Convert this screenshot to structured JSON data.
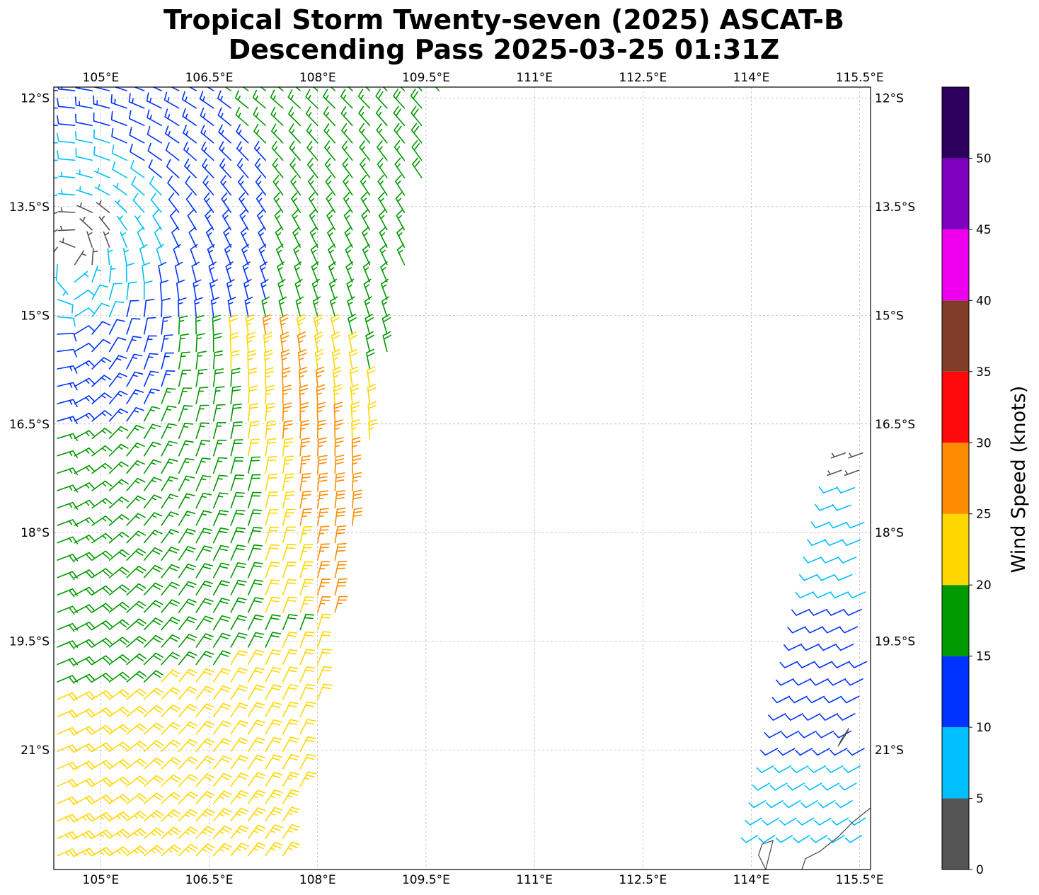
{
  "title": {
    "line1": "Tropical Storm Twenty-seven (2025) ASCAT-B",
    "line2": "Descending Pass 2025-03-25 01:31Z"
  },
  "map": {
    "lon_min": 104.35,
    "lon_max": 115.65,
    "lat_min": -22.65,
    "lat_max": -11.85,
    "lon_ticks": [
      105,
      106.5,
      108,
      109.5,
      111,
      112.5,
      114,
      115.5
    ],
    "lon_labels": [
      "105°E",
      "106.5°E",
      "108°E",
      "109.5°E",
      "111°E",
      "112.5°E",
      "114°E",
      "115.5°E"
    ],
    "lat_ticks": [
      -12,
      -13.5,
      -15,
      -16.5,
      -18,
      -19.5,
      -21
    ],
    "lat_labels": [
      "12°S",
      "13.5°S",
      "15°S",
      "16.5°S",
      "18°S",
      "19.5°S",
      "21°S"
    ],
    "gridlines": true,
    "coastline_color": "#444444"
  },
  "colorbar": {
    "label": "Wind Speed (knots)",
    "bounds": [
      0,
      5,
      10,
      15,
      20,
      25,
      30,
      35,
      40,
      45,
      50,
      55
    ],
    "tick_values": [
      0,
      5,
      10,
      15,
      20,
      25,
      30,
      35,
      40,
      45,
      50
    ],
    "tick_labels": [
      "0",
      "5",
      "10",
      "15",
      "20",
      "25",
      "30",
      "35",
      "40",
      "45",
      "50"
    ],
    "colors": [
      "#555555",
      "#00BFFF",
      "#0033FF",
      "#009900",
      "#FFD700",
      "#FF8C00",
      "#FF0A0A",
      "#803C28",
      "#EE00EE",
      "#8000C0",
      "#2E005E"
    ]
  }
}
